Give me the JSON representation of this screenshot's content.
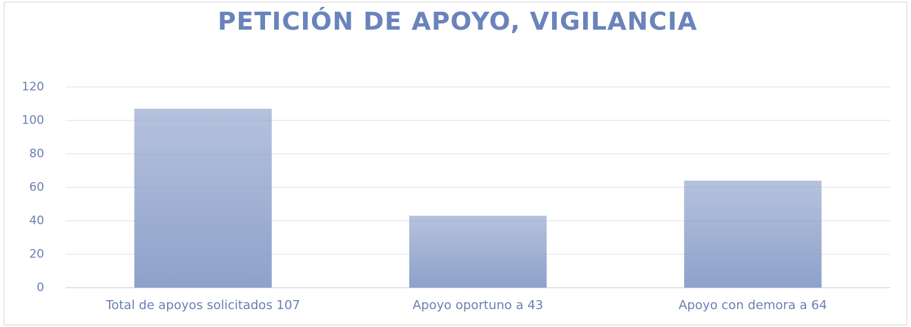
{
  "chart_data": {
    "type": "bar",
    "title": "PETICIÓN DE APOYO, VIGILANCIA",
    "categories": [
      "Total de apoyos solicitados 107",
      "Apoyo oportuno a 43",
      "Apoyo con demora a 64"
    ],
    "values": [
      107,
      43,
      64
    ],
    "color": "#8ea1cb",
    "ylim": [
      0,
      120
    ],
    "yticks": [
      0,
      20,
      40,
      60,
      80,
      100,
      120
    ],
    "grid": true
  }
}
